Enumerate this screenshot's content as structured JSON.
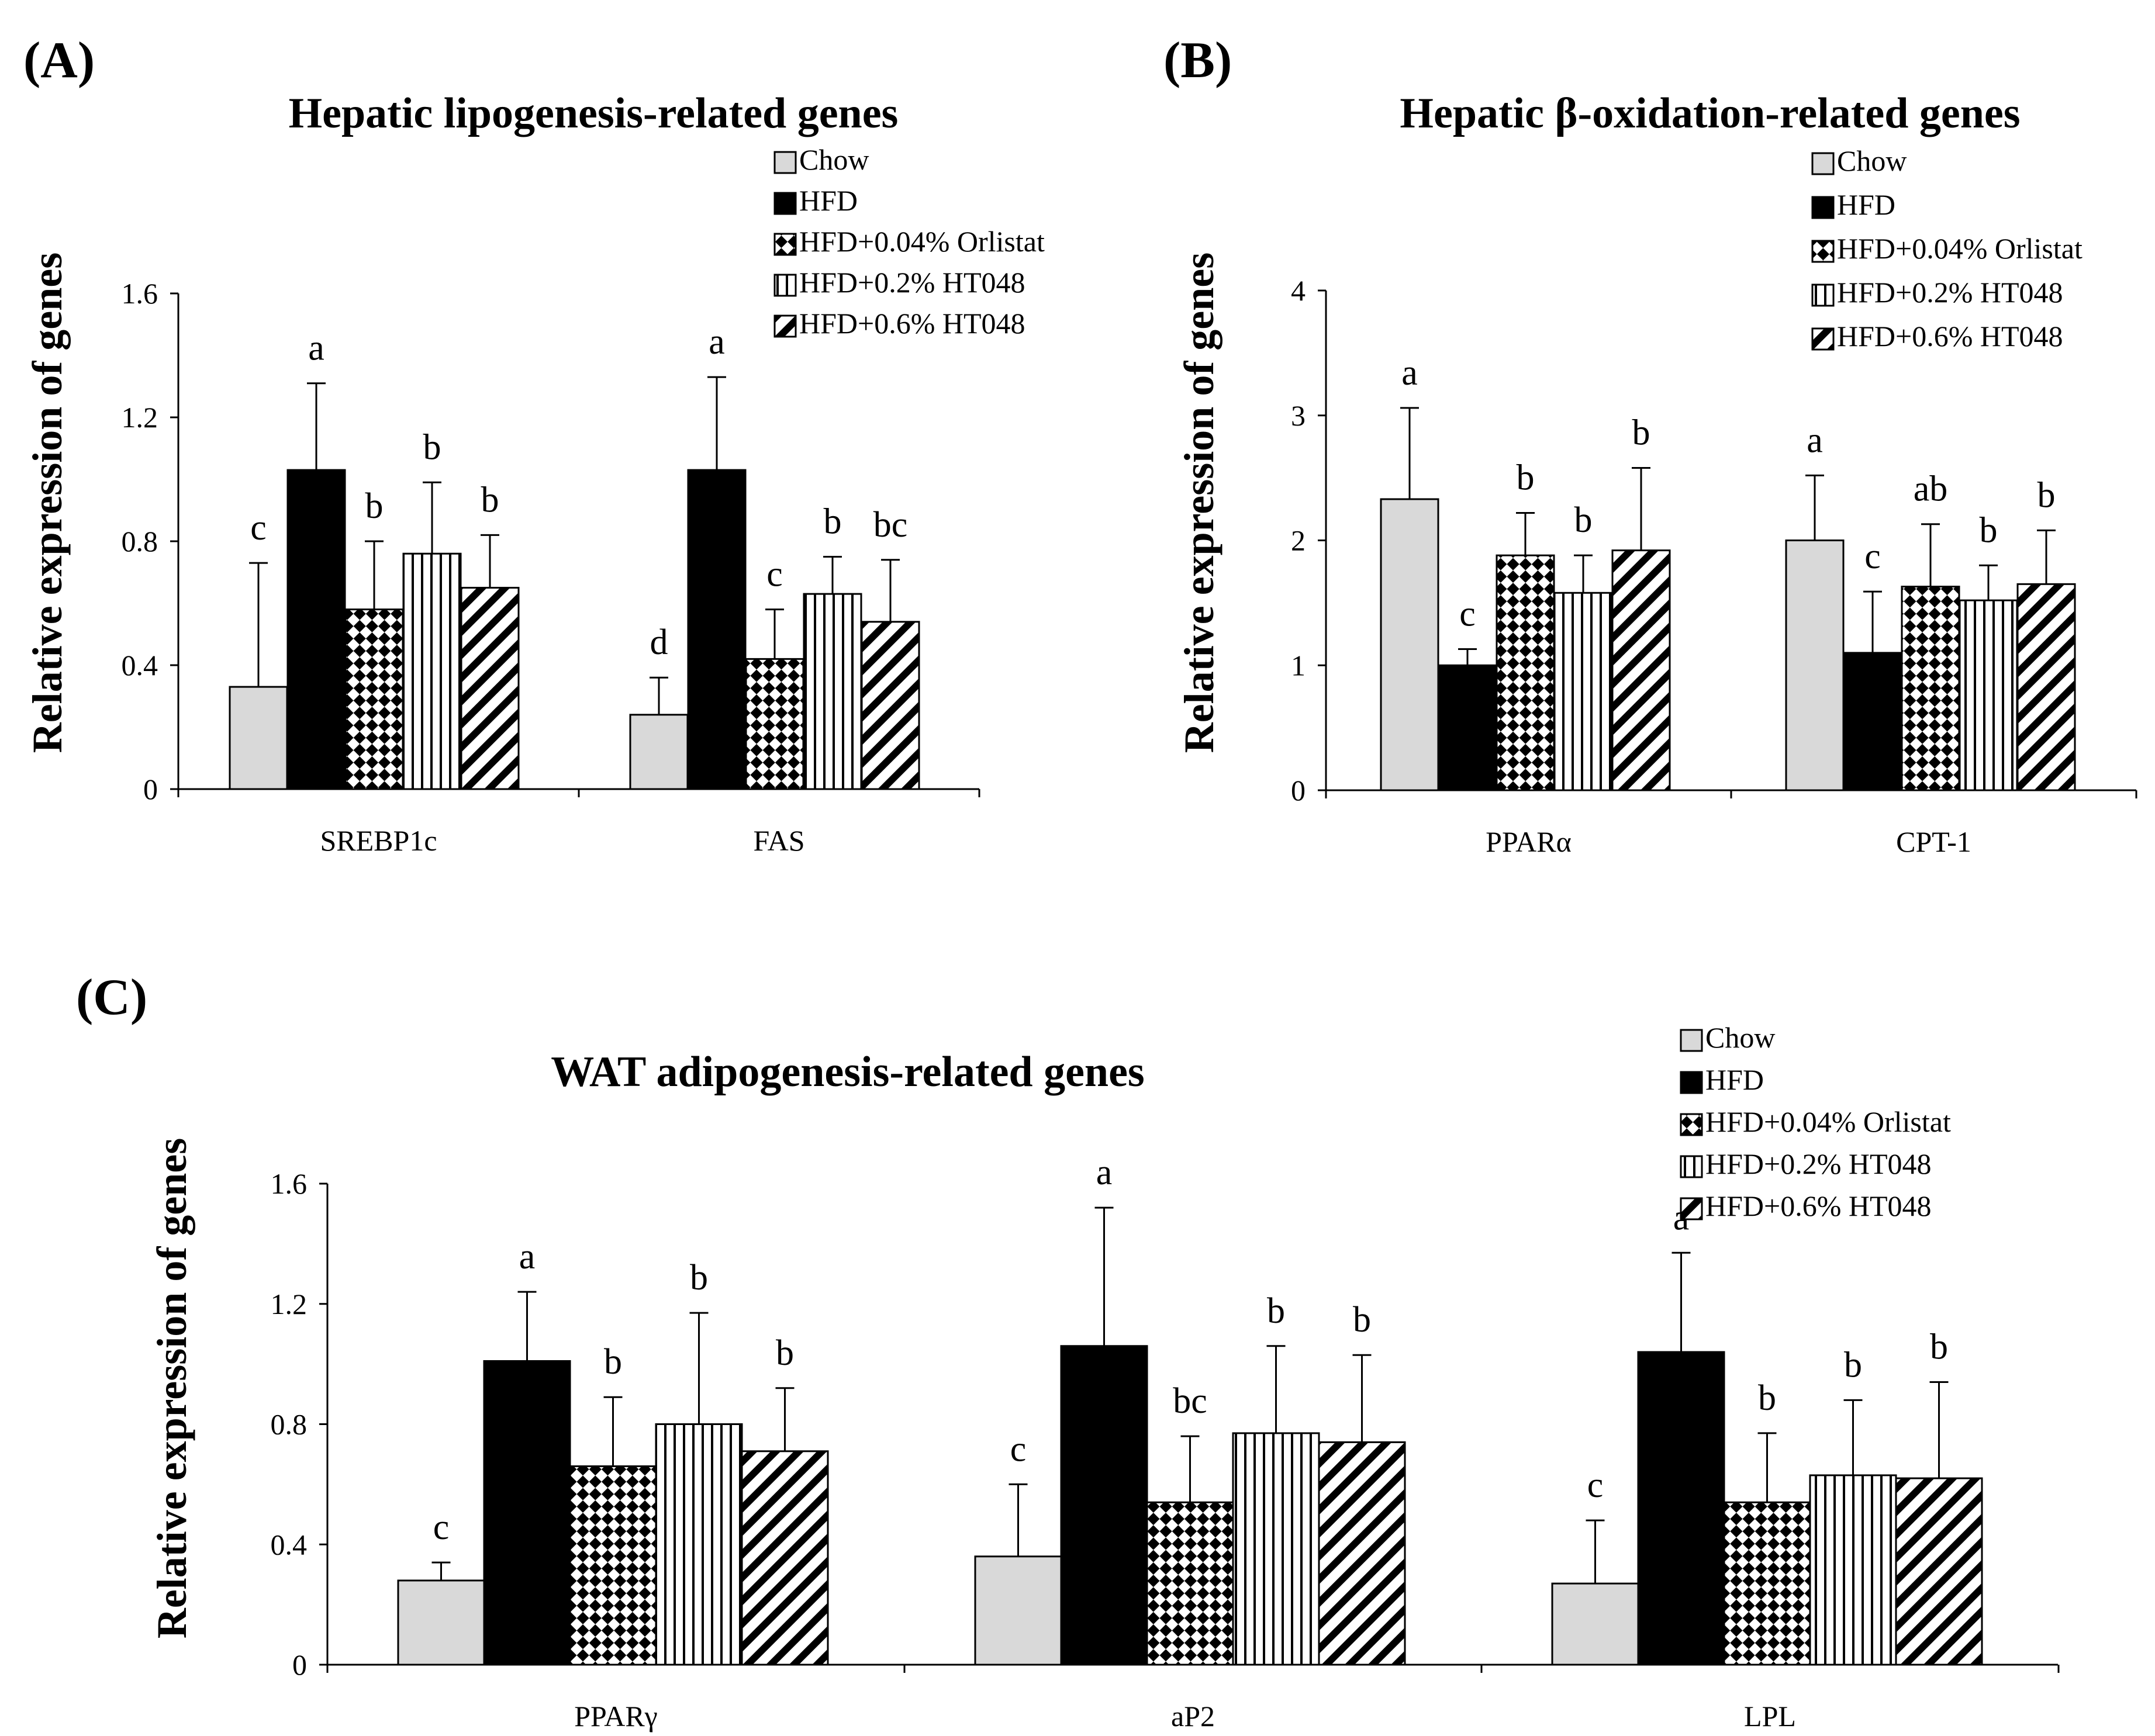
{
  "legend_items": [
    {
      "label": "Chow",
      "pattern": "light-gray"
    },
    {
      "label": "HFD",
      "pattern": "solid-black"
    },
    {
      "label": "HFD+0.04% Orlistat",
      "pattern": "checker"
    },
    {
      "label": "HFD+0.2% HT048",
      "pattern": "vertical-lines"
    },
    {
      "label": "HFD+0.6% HT048",
      "pattern": "diagonal-lines"
    }
  ],
  "colors": {
    "chow": "#d9d9d9",
    "hfd": "#000000",
    "axis": "#000000",
    "background": "#ffffff"
  },
  "chart_data": [
    {
      "panel": "(A)",
      "type": "bar",
      "title": "Hepatic lipogenesis-related genes",
      "ylabel": "Relative expression of genes",
      "ylim": [
        0,
        1.6
      ],
      "yticks": [
        "0",
        "0.4",
        "0.8",
        "1.2",
        "1.6"
      ],
      "ytick_values": [
        0,
        0.4,
        0.8,
        1.2,
        1.6
      ],
      "legend_position": "top-right",
      "categories": [
        "SREBP1c",
        "FAS"
      ],
      "series": [
        {
          "name": "Chow",
          "values": [
            0.33,
            0.24
          ],
          "errors": [
            0.4,
            0.12
          ],
          "letters": [
            "c",
            "d"
          ]
        },
        {
          "name": "HFD",
          "values": [
            1.03,
            1.03
          ],
          "errors": [
            0.28,
            0.3
          ],
          "letters": [
            "a",
            "a"
          ]
        },
        {
          "name": "HFD+0.04% Orlistat",
          "values": [
            0.58,
            0.42
          ],
          "errors": [
            0.22,
            0.16
          ],
          "letters": [
            "b",
            "c"
          ]
        },
        {
          "name": "HFD+0.2% HT048",
          "values": [
            0.76,
            0.63
          ],
          "errors": [
            0.23,
            0.12
          ],
          "letters": [
            "b",
            "b"
          ]
        },
        {
          "name": "HFD+0.6% HT048",
          "values": [
            0.65,
            0.54
          ],
          "errors": [
            0.17,
            0.2
          ],
          "letters": [
            "b",
            "bc"
          ]
        }
      ]
    },
    {
      "panel": "(B)",
      "type": "bar",
      "title": "Hepatic β-oxidation-related genes",
      "ylabel": "Relative expression of genes",
      "ylim": [
        0,
        4
      ],
      "yticks": [
        "0",
        "1",
        "2",
        "3",
        "4"
      ],
      "ytick_values": [
        0,
        1,
        2,
        3,
        4
      ],
      "legend_position": "top-right",
      "categories": [
        "PPARα",
        "CPT-1"
      ],
      "series": [
        {
          "name": "Chow",
          "values": [
            2.33,
            2.0
          ],
          "errors": [
            0.73,
            0.52
          ],
          "letters": [
            "a",
            "a"
          ]
        },
        {
          "name": "HFD",
          "values": [
            1.0,
            1.1
          ],
          "errors": [
            0.13,
            0.49
          ],
          "letters": [
            "c",
            "c"
          ]
        },
        {
          "name": "HFD+0.04% Orlistat",
          "values": [
            1.88,
            1.63
          ],
          "errors": [
            0.34,
            0.5
          ],
          "letters": [
            "b",
            "ab"
          ]
        },
        {
          "name": "HFD+0.2% HT048",
          "values": [
            1.58,
            1.52
          ],
          "errors": [
            0.3,
            0.28
          ],
          "letters": [
            "b",
            "b"
          ]
        },
        {
          "name": "HFD+0.6% HT048",
          "values": [
            1.92,
            1.65
          ],
          "errors": [
            0.66,
            0.43
          ],
          "letters": [
            "b",
            "b"
          ]
        }
      ]
    },
    {
      "panel": "(C)",
      "type": "bar",
      "title": "WAT adipogenesis-related genes",
      "ylabel": "Relative expression of genes",
      "ylim": [
        0,
        1.6
      ],
      "yticks": [
        "0",
        "0.4",
        "0.8",
        "1.2",
        "1.6"
      ],
      "ytick_values": [
        0,
        0.4,
        0.8,
        1.2,
        1.6
      ],
      "legend_position": "top-right",
      "categories": [
        "PPARγ",
        "aP2",
        "LPL"
      ],
      "series": [
        {
          "name": "Chow",
          "values": [
            0.28,
            0.36,
            0.27
          ],
          "errors": [
            0.06,
            0.24,
            0.21
          ],
          "letters": [
            "c",
            "c",
            "c"
          ]
        },
        {
          "name": "HFD",
          "values": [
            1.01,
            1.06,
            1.04
          ],
          "errors": [
            0.23,
            0.46,
            0.33
          ],
          "letters": [
            "a",
            "a",
            "a"
          ]
        },
        {
          "name": "HFD+0.04% Orlistat",
          "values": [
            0.66,
            0.54,
            0.54
          ],
          "errors": [
            0.23,
            0.22,
            0.23
          ],
          "letters": [
            "b",
            "bc",
            "b"
          ]
        },
        {
          "name": "HFD+0.2% HT048",
          "values": [
            0.8,
            0.77,
            0.63
          ],
          "errors": [
            0.37,
            0.29,
            0.25
          ],
          "letters": [
            "b",
            "b",
            "b"
          ]
        },
        {
          "name": "HFD+0.6% HT048",
          "values": [
            0.71,
            0.74,
            0.62
          ],
          "errors": [
            0.21,
            0.29,
            0.32
          ],
          "letters": [
            "b",
            "b",
            "b"
          ]
        }
      ]
    }
  ]
}
